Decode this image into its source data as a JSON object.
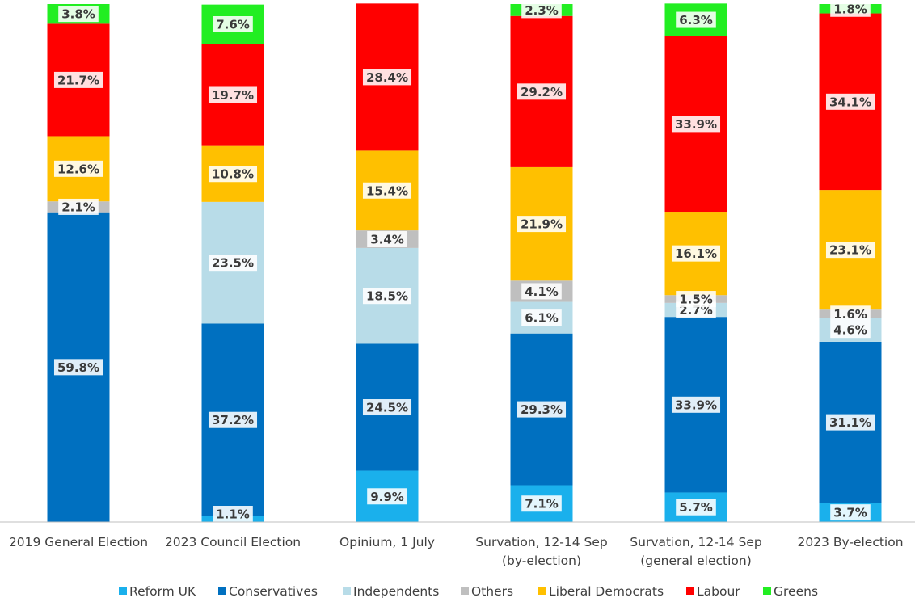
{
  "chart_data": {
    "type": "stacked-bar",
    "categories": [
      [
        "2019 General Election"
      ],
      [
        "2023 Council Election"
      ],
      [
        "Opinium, 1 July"
      ],
      [
        "Survation, 12-14 Sep",
        "(by-election)"
      ],
      [
        "Survation, 12-14 Sep",
        "(general election)"
      ],
      [
        "2023 By-election"
      ]
    ],
    "series": [
      {
        "name": "Reform UK",
        "color": "#1AB0EC",
        "values": [
          0,
          1.1,
          9.9,
          7.1,
          5.7,
          3.7
        ],
        "labels": [
          null,
          "1.1%",
          "9.9%",
          "7.1%",
          "5.7%",
          "3.7%"
        ]
      },
      {
        "name": "Conservatives",
        "color": "#0070C0",
        "values": [
          59.8,
          37.2,
          24.5,
          29.3,
          33.9,
          31.1
        ],
        "labels": [
          "59.8%",
          "37.2%",
          "24.5%",
          "29.3%",
          "33.9%",
          "31.1%"
        ]
      },
      {
        "name": "Independents",
        "color": "#B8DCE8",
        "values": [
          0,
          23.5,
          18.5,
          6.1,
          2.7,
          4.6
        ],
        "labels": [
          null,
          "23.5%",
          "18.5%",
          "6.1%",
          "2.7%",
          "4.6%"
        ]
      },
      {
        "name": "Others",
        "color": "#BFBFBF",
        "values": [
          2.1,
          0,
          3.4,
          4.1,
          1.5,
          1.6
        ],
        "labels": [
          "2.1%",
          null,
          "3.4%",
          "4.1%",
          "1.5%",
          "1.6%"
        ]
      },
      {
        "name": "Liberal Democrats",
        "color": "#FFC000",
        "values": [
          12.6,
          10.8,
          15.4,
          21.9,
          16.1,
          23.1
        ],
        "labels": [
          "12.6%",
          "10.8%",
          "15.4%",
          "21.9%",
          "16.1%",
          "23.1%"
        ]
      },
      {
        "name": "Labour",
        "color": "#FF0000",
        "values": [
          21.7,
          19.7,
          28.4,
          29.2,
          33.9,
          34.1
        ],
        "labels": [
          "21.7%",
          "19.7%",
          "28.4%",
          "29.2%",
          "33.9%",
          "34.1%"
        ]
      },
      {
        "name": "Greens",
        "color": "#22EE22",
        "values": [
          3.8,
          7.6,
          0,
          2.3,
          6.3,
          1.8
        ],
        "labels": [
          "3.8%",
          "7.6%",
          null,
          "2.3%",
          "6.3%",
          "1.8%"
        ]
      }
    ],
    "ylim": [
      0,
      100
    ],
    "grid": false,
    "legend": "bottom"
  }
}
